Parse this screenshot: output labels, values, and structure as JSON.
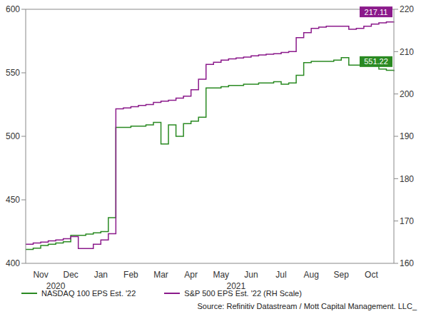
{
  "chart_data": {
    "type": "line",
    "categories": [
      null,
      null,
      "Nov",
      null,
      null,
      null,
      "Dec",
      null,
      null,
      null,
      "Jan",
      null,
      null,
      null,
      "Feb",
      null,
      null,
      null,
      "Mar",
      null,
      null,
      null,
      "Apr",
      null,
      null,
      null,
      "May",
      null,
      null,
      null,
      "Jun",
      null,
      null,
      null,
      "Jul",
      null,
      null,
      null,
      "Aug",
      null,
      null,
      null,
      "Sep",
      null,
      null,
      null,
      "Oct",
      null,
      null,
      null
    ],
    "year_labels": [
      {
        "label": "2020",
        "first": "Nov",
        "last": "Dec"
      },
      {
        "label": "2021",
        "first": "Jan",
        "last": "Oct"
      }
    ],
    "series": [
      {
        "name": "NASDAQ 100 EPS Est. '22",
        "color": "#2a8a22",
        "line_style": "step",
        "values": [
          411,
          412,
          414,
          415,
          416,
          417,
          422,
          422,
          423,
          424,
          425,
          436,
          507,
          507,
          508,
          508,
          509,
          511,
          494,
          509,
          500,
          510,
          512,
          515,
          538,
          538,
          539,
          540,
          540,
          541,
          541,
          542,
          542,
          543,
          541,
          542,
          548,
          558,
          559,
          559,
          559,
          560,
          562,
          556,
          556,
          556,
          556,
          553,
          552,
          551.22
        ],
        "value_labels": [
          null,
          null,
          null,
          null,
          null,
          null,
          null,
          null,
          null,
          null,
          null,
          null,
          null,
          null,
          null,
          null,
          null,
          null,
          null,
          null,
          null,
          null,
          null,
          null,
          null,
          null,
          null,
          null,
          null,
          null,
          null,
          null,
          null,
          null,
          null,
          null,
          null,
          null,
          null,
          null,
          null,
          null,
          null,
          null,
          null,
          null,
          null,
          null,
          null,
          "551.22"
        ]
      },
      {
        "name": "S&P 500 EPS Est. '22 (RH Scale)",
        "color": "#8b1a8b",
        "line_style": "step",
        "axis": "y2",
        "values": [
          164.5,
          164.8,
          165,
          165.3,
          165.5,
          165.8,
          166.3,
          163.5,
          163.5,
          164.5,
          165.5,
          167,
          196.5,
          196.7,
          197,
          197.3,
          197.5,
          198,
          198.3,
          198.5,
          199,
          199.5,
          201,
          203.5,
          207,
          207.5,
          208,
          208.3,
          208.5,
          208.7,
          209,
          209.2,
          209.4,
          209.5,
          209.8,
          210,
          213.3,
          214.5,
          215.5,
          215.8,
          216,
          216,
          216,
          215.3,
          215.5,
          216,
          216.5,
          216.8,
          217,
          217.11
        ],
        "value_labels": [
          null,
          null,
          null,
          null,
          null,
          null,
          null,
          null,
          null,
          null,
          null,
          null,
          null,
          null,
          null,
          null,
          null,
          null,
          null,
          null,
          null,
          null,
          null,
          null,
          null,
          null,
          null,
          null,
          null,
          null,
          null,
          null,
          null,
          null,
          null,
          null,
          null,
          null,
          null,
          null,
          null,
          null,
          null,
          null,
          null,
          null,
          null,
          null,
          null,
          "217.11"
        ]
      }
    ],
    "ylim": [
      400,
      600
    ],
    "yticks": [
      400,
      450,
      500,
      550,
      600
    ],
    "y2lim": [
      160,
      220
    ],
    "y2ticks": [
      160,
      170,
      180,
      190,
      200,
      210,
      220
    ],
    "grid": false,
    "legend": "bottom",
    "source": "Source: Refinitiv Datastream / Mott Capital Management. LLC_"
  }
}
